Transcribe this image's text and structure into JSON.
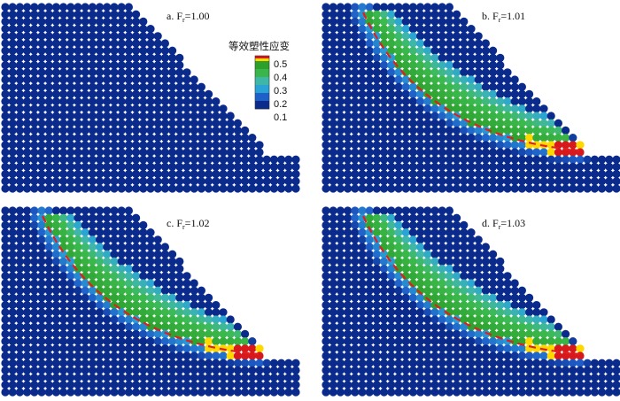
{
  "figure": {
    "panels": [
      {
        "id": "a",
        "label_prefix": "a. F",
        "label_sub": "r",
        "label_value": "=1.00",
        "has_failure": false
      },
      {
        "id": "b",
        "label_prefix": "b. F",
        "label_sub": "r",
        "label_value": "=1.01",
        "has_failure": true
      },
      {
        "id": "c",
        "label_prefix": "c. F",
        "label_sub": "r",
        "label_value": "=1.02",
        "has_failure": true
      },
      {
        "id": "d",
        "label_prefix": "d. F",
        "label_sub": "r",
        "label_value": "=1.03",
        "has_failure": true
      }
    ],
    "legend": {
      "title": "等效塑性应变",
      "ticks": [
        "0.5",
        "0.4",
        "0.3",
        "0.2",
        "0.1"
      ],
      "colors": [
        "#d7191c",
        "#ffd800",
        "#2ca02c",
        "#39b54a",
        "#3fb7a8",
        "#29a3d6",
        "#1f5fc8",
        "#0a2a8c"
      ]
    },
    "colors": {
      "background_particle": "#0a2a8c",
      "slip_line": "#e02020"
    }
  }
}
